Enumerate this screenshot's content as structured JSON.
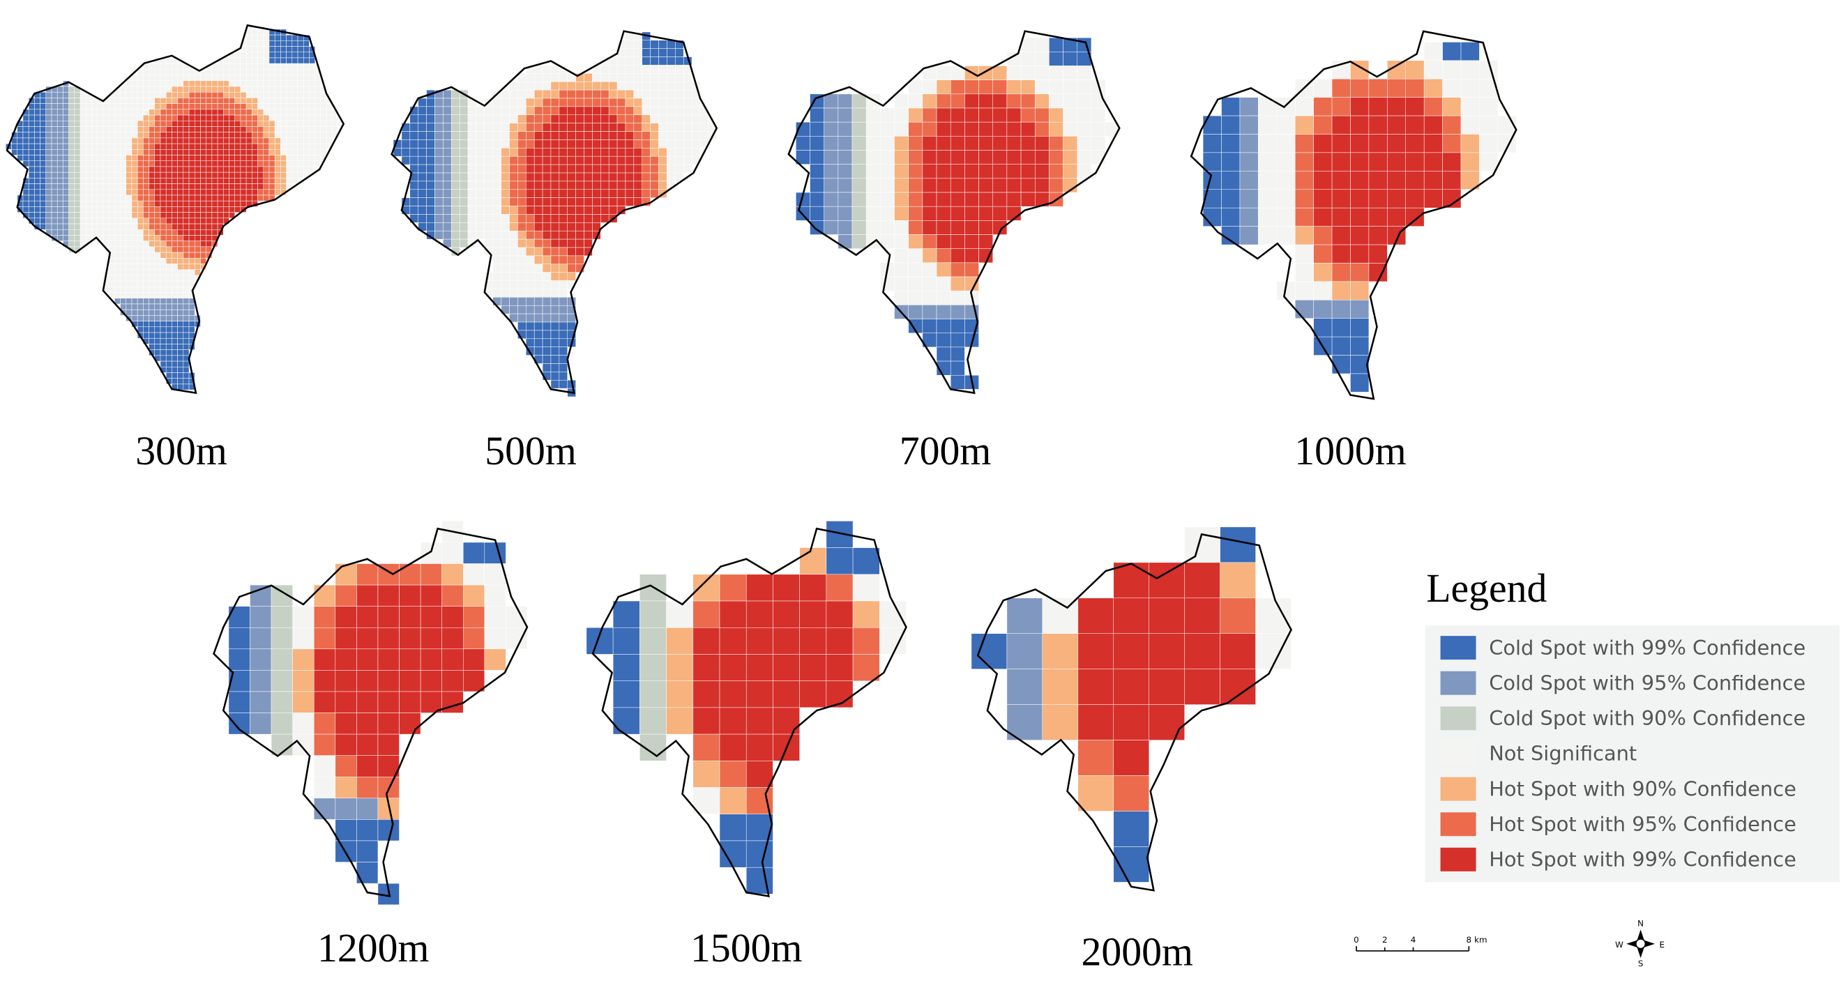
{
  "panels": [
    {
      "label": "300m"
    },
    {
      "label": "500m"
    },
    {
      "label": "700m"
    },
    {
      "label": "1000m"
    },
    {
      "label": "1200m"
    },
    {
      "label": "1500m"
    },
    {
      "label": "2000m"
    }
  ],
  "legend": {
    "title": "Legend",
    "items": [
      {
        "label": "Cold Spot with 99% Confidence",
        "color": "#3a6cb8"
      },
      {
        "label": "Cold Spot with 95% Confidence",
        "color": "#8098c0"
      },
      {
        "label": "Cold Spot with 90% Confidence",
        "color": "#c6d0c4"
      },
      {
        "label": "Not Significant",
        "color": "#f4f4f2"
      },
      {
        "label": "Hot Spot with 90% Confidence",
        "color": "#f7b27e"
      },
      {
        "label": "Hot Spot with 95% Confidence",
        "color": "#ec6b4c"
      },
      {
        "label": "Hot Spot with 99% Confidence",
        "color": "#d6302a"
      }
    ]
  },
  "scale_bar": {
    "labels": [
      "0",
      "2",
      "4",
      "8"
    ],
    "unit": "km"
  },
  "compass": {
    "north": "N",
    "south": "S",
    "west": "W",
    "east": "E"
  }
}
